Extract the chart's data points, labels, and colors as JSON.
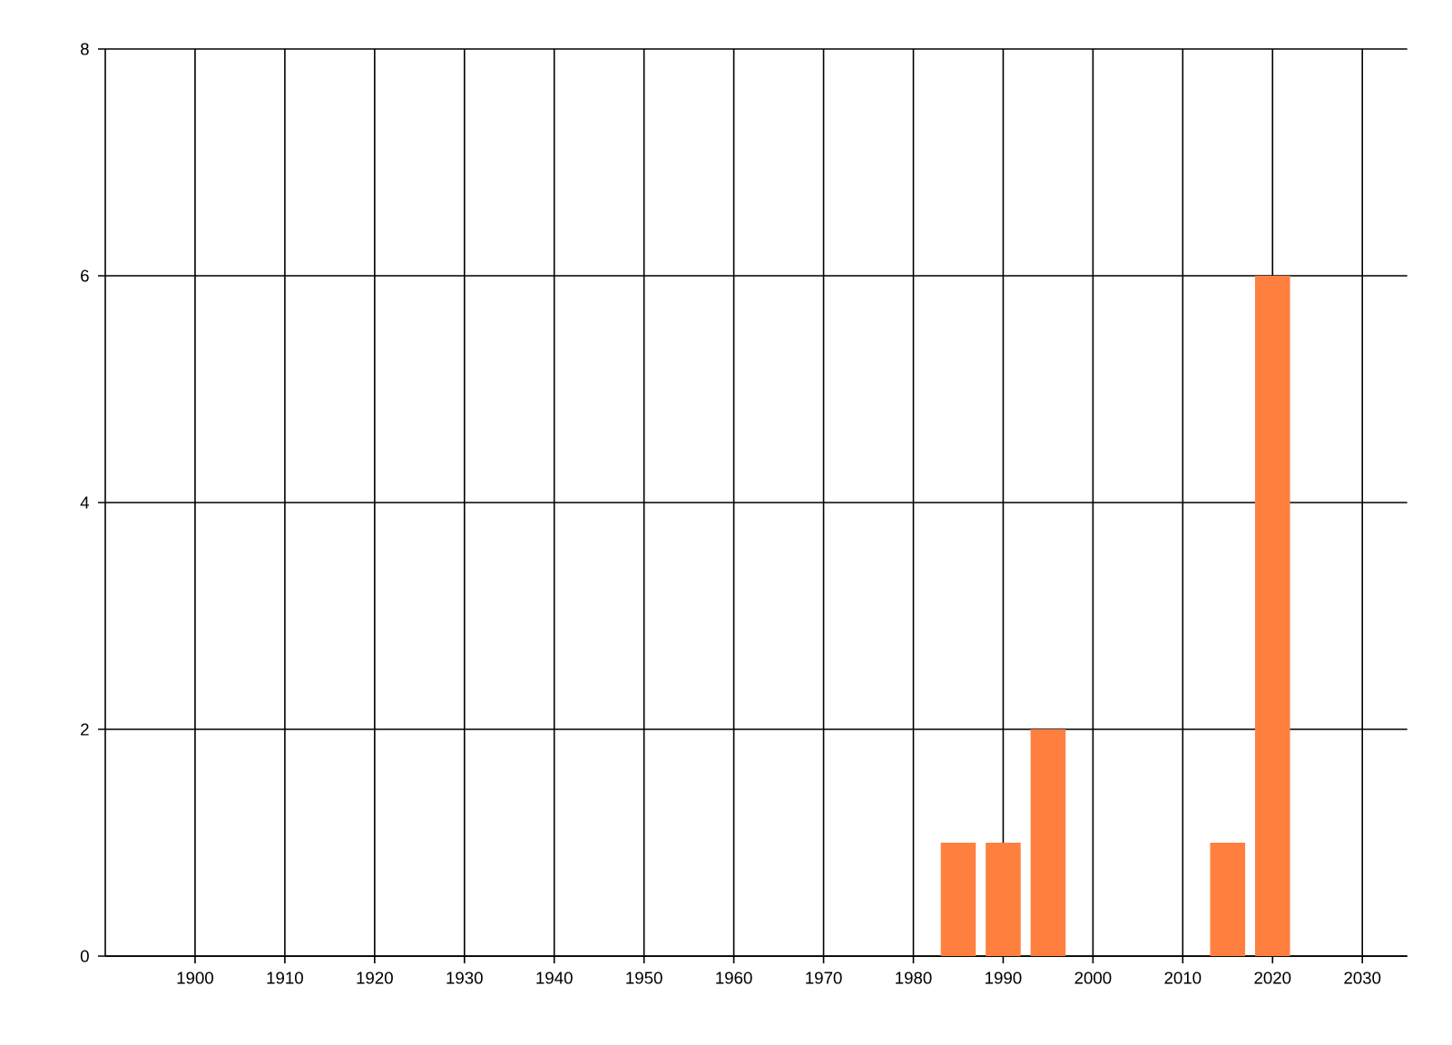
{
  "chart_data": {
    "type": "bar",
    "x": [
      1985,
      1990,
      1995,
      2015,
      2020
    ],
    "values": [
      1,
      1,
      2,
      1,
      6
    ],
    "color": "#ff7f3f",
    "xlim": [
      1890,
      2035
    ],
    "xticks": [
      1900,
      1910,
      1920,
      1930,
      1940,
      1950,
      1960,
      1970,
      1980,
      1990,
      2000,
      2010,
      2020,
      2030
    ],
    "ylim": [
      0,
      8
    ],
    "yticks": [
      0,
      2,
      4,
      6,
      8
    ],
    "grid": true
  }
}
